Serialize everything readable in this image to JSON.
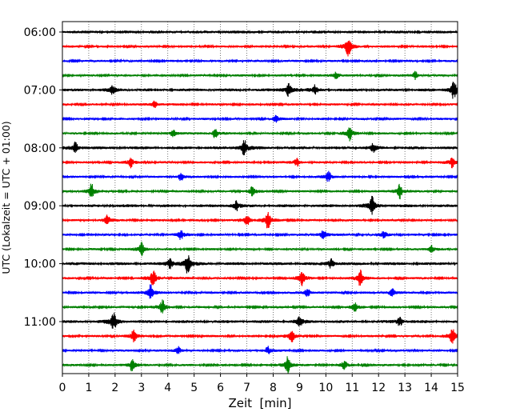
{
  "chart_data": {
    "type": "line",
    "xlabel": "Zeit  [min]",
    "ylabel": "UTC (Lokalzeit = UTC + 01:00)",
    "xlim": [
      0,
      15
    ],
    "x_ticks": [
      "0",
      "1",
      "2",
      "3",
      "4",
      "5",
      "6",
      "7",
      "8",
      "9",
      "10",
      "11",
      "12",
      "13",
      "14",
      "15"
    ],
    "y_ticks": [
      "06:00",
      "07:00",
      "08:00",
      "09:00",
      "10:00",
      "11:00"
    ],
    "trace_interval_minutes": 15,
    "traces_start": "06:00",
    "traces_count": 24,
    "trace_colors": [
      "#000000",
      "#ff0000",
      "#0000ff",
      "#008000"
    ],
    "grid": "vertical dotted at each minute",
    "events": [
      {
        "trace": 1,
        "t": 10.85,
        "a": 10
      },
      {
        "trace": 3,
        "t": 10.4,
        "a": 4
      },
      {
        "trace": 3,
        "t": 13.4,
        "a": 4
      },
      {
        "trace": 4,
        "t": 8.6,
        "a": 8
      },
      {
        "trace": 4,
        "t": 9.6,
        "a": 5
      },
      {
        "trace": 4,
        "t": 14.85,
        "a": 10
      },
      {
        "trace": 4,
        "t": 1.9,
        "a": 4
      },
      {
        "trace": 5,
        "t": 3.5,
        "a": 4
      },
      {
        "trace": 6,
        "t": 8.1,
        "a": 3
      },
      {
        "trace": 7,
        "t": 4.2,
        "a": 4
      },
      {
        "trace": 7,
        "t": 5.8,
        "a": 5
      },
      {
        "trace": 7,
        "t": 10.9,
        "a": 7
      },
      {
        "trace": 8,
        "t": 0.5,
        "a": 6
      },
      {
        "trace": 8,
        "t": 6.9,
        "a": 9
      },
      {
        "trace": 8,
        "t": 11.8,
        "a": 4
      },
      {
        "trace": 9,
        "t": 2.6,
        "a": 5
      },
      {
        "trace": 9,
        "t": 8.9,
        "a": 4
      },
      {
        "trace": 9,
        "t": 14.8,
        "a": 6
      },
      {
        "trace": 10,
        "t": 10.1,
        "a": 6
      },
      {
        "trace": 10,
        "t": 4.5,
        "a": 4
      },
      {
        "trace": 11,
        "t": 1.1,
        "a": 8
      },
      {
        "trace": 11,
        "t": 7.2,
        "a": 5
      },
      {
        "trace": 11,
        "t": 12.8,
        "a": 8
      },
      {
        "trace": 12,
        "t": 6.6,
        "a": 5
      },
      {
        "trace": 12,
        "t": 11.75,
        "a": 9
      },
      {
        "trace": 13,
        "t": 1.7,
        "a": 5
      },
      {
        "trace": 13,
        "t": 7.8,
        "a": 9
      },
      {
        "trace": 13,
        "t": 7.0,
        "a": 6
      },
      {
        "trace": 14,
        "t": 4.5,
        "a": 5
      },
      {
        "trace": 14,
        "t": 9.9,
        "a": 6
      },
      {
        "trace": 14,
        "t": 12.2,
        "a": 4
      },
      {
        "trace": 15,
        "t": 3.0,
        "a": 7
      },
      {
        "trace": 15,
        "t": 14.0,
        "a": 4
      },
      {
        "trace": 16,
        "t": 4.75,
        "a": 10
      },
      {
        "trace": 16,
        "t": 4.1,
        "a": 5
      },
      {
        "trace": 16,
        "t": 10.2,
        "a": 5
      },
      {
        "trace": 17,
        "t": 3.45,
        "a": 9
      },
      {
        "trace": 17,
        "t": 9.1,
        "a": 7
      },
      {
        "trace": 17,
        "t": 11.3,
        "a": 9
      },
      {
        "trace": 18,
        "t": 3.35,
        "a": 9
      },
      {
        "trace": 18,
        "t": 9.3,
        "a": 5
      },
      {
        "trace": 18,
        "t": 12.5,
        "a": 5
      },
      {
        "trace": 19,
        "t": 3.8,
        "a": 7
      },
      {
        "trace": 19,
        "t": 11.1,
        "a": 4
      },
      {
        "trace": 20,
        "t": 1.95,
        "a": 9
      },
      {
        "trace": 20,
        "t": 9.0,
        "a": 5
      },
      {
        "trace": 20,
        "t": 12.8,
        "a": 5
      },
      {
        "trace": 21,
        "t": 2.7,
        "a": 6
      },
      {
        "trace": 21,
        "t": 8.7,
        "a": 6
      },
      {
        "trace": 21,
        "t": 14.8,
        "a": 8
      },
      {
        "trace": 22,
        "t": 4.4,
        "a": 4
      },
      {
        "trace": 22,
        "t": 7.8,
        "a": 4
      },
      {
        "trace": 23,
        "t": 2.65,
        "a": 7
      },
      {
        "trace": 23,
        "t": 8.55,
        "a": 9
      },
      {
        "trace": 23,
        "t": 10.7,
        "a": 4
      }
    ]
  }
}
